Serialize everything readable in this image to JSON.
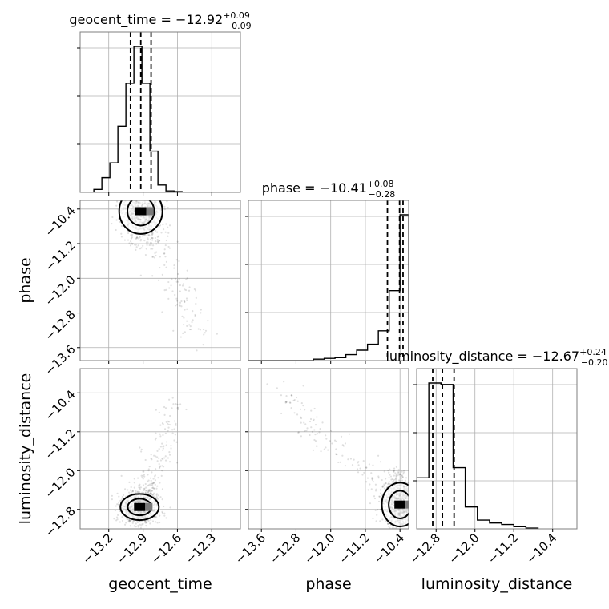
{
  "chart_data": {
    "type": "scatter",
    "parameters": [
      "geocent_time",
      "phase",
      "luminosity_distance"
    ],
    "ranges": {
      "geocent_time": [
        -13.45,
        -12.05
      ],
      "phase": [
        -13.9,
        -10.2
      ],
      "luminosity_distance": [
        -13.2,
        -9.9
      ]
    },
    "ticks": {
      "geocent_time": [
        "−13.2",
        "−12.9",
        "−12.6",
        "−12.3"
      ],
      "phase": [
        "−13.6",
        "−12.8",
        "−12.0",
        "−11.2",
        "−10.4"
      ],
      "luminosity_distance": [
        "−12.8",
        "−12.0",
        "−11.2",
        "−10.4"
      ]
    },
    "tick_values": {
      "geocent_time": [
        -13.2,
        -12.9,
        -12.6,
        -12.3
      ],
      "phase": [
        -13.6,
        -12.8,
        -12.0,
        -11.2,
        -10.4
      ],
      "luminosity_distance": [
        -12.8,
        -12.0,
        -11.2,
        -10.4
      ]
    },
    "titles": [
      {
        "parameter": "geocent_time",
        "label": "geocent_time = ",
        "value": "−12.92",
        "plus": "+0.09",
        "minus": "−0.09"
      },
      {
        "parameter": "phase",
        "label": "phase = ",
        "value": "−10.41",
        "plus": "+0.08",
        "minus": "−0.28"
      },
      {
        "parameter": "luminosity_distance",
        "label": "luminosity_distance = ",
        "value": "−12.67",
        "plus": "+0.24",
        "minus": "−0.20"
      }
    ],
    "quantiles": {
      "geocent_time": [
        -13.01,
        -12.92,
        -12.83
      ],
      "phase": [
        -10.69,
        -10.41,
        -10.33
      ],
      "luminosity_distance": [
        -12.87,
        -12.67,
        -12.43
      ]
    },
    "histograms": {
      "geocent_time": {
        "edges": [
          -13.33,
          -13.26,
          -13.19,
          -13.12,
          -13.05,
          -12.98,
          -12.91,
          -12.84,
          -12.77,
          -12.7,
          -12.63,
          -12.56
        ],
        "counts": [
          0.02,
          0.1,
          0.2,
          0.45,
          0.74,
          0.99,
          0.74,
          0.28,
          0.05,
          0.01,
          0.005
        ]
      },
      "phase": {
        "edges": [
          -13.9,
          -12.4,
          -12.15,
          -11.9,
          -11.65,
          -11.4,
          -11.15,
          -10.9,
          -10.65,
          -10.4,
          -10.2
        ],
        "counts": [
          0.0,
          0.01,
          0.015,
          0.02,
          0.04,
          0.07,
          0.11,
          0.2,
          0.47,
          0.98
        ]
      },
      "luminosity_distance": {
        "edges": [
          -13.2,
          -12.95,
          -12.7,
          -12.45,
          -12.2,
          -11.95,
          -11.7,
          -11.45,
          -11.2,
          -10.95,
          -10.7
        ],
        "counts": [
          0.35,
          1.0,
          0.99,
          0.42,
          0.15,
          0.06,
          0.04,
          0.03,
          0.015,
          0.005
        ]
      }
    },
    "point_clouds": {
      "geocent_time_vs_phase": {
        "center": [
          -12.92,
          -10.45
        ],
        "spread": [
          0.09,
          0.35
        ],
        "tail_to": [
          -12.4,
          -13.4
        ]
      },
      "geocent_time_vs_luminosity_distance": {
        "center": [
          -12.93,
          -12.75
        ],
        "spread": [
          0.08,
          0.18
        ],
        "tail_to": [
          -12.6,
          -10.6
        ]
      },
      "phase_vs_luminosity_distance": {
        "center": [
          -10.4,
          -12.7
        ],
        "spread": [
          0.2,
          0.3
        ],
        "tail_to": [
          -13.3,
          -10.4
        ]
      }
    },
    "axis_labels": {
      "x": [
        "geocent_time",
        "phase",
        "luminosity_distance"
      ],
      "y": [
        "phase",
        "luminosity_distance"
      ]
    },
    "grid": true,
    "colors": {
      "points": "#000000",
      "lines": "#000000",
      "frame": "#7f7f7f",
      "grid": "#b0b0b0"
    }
  }
}
